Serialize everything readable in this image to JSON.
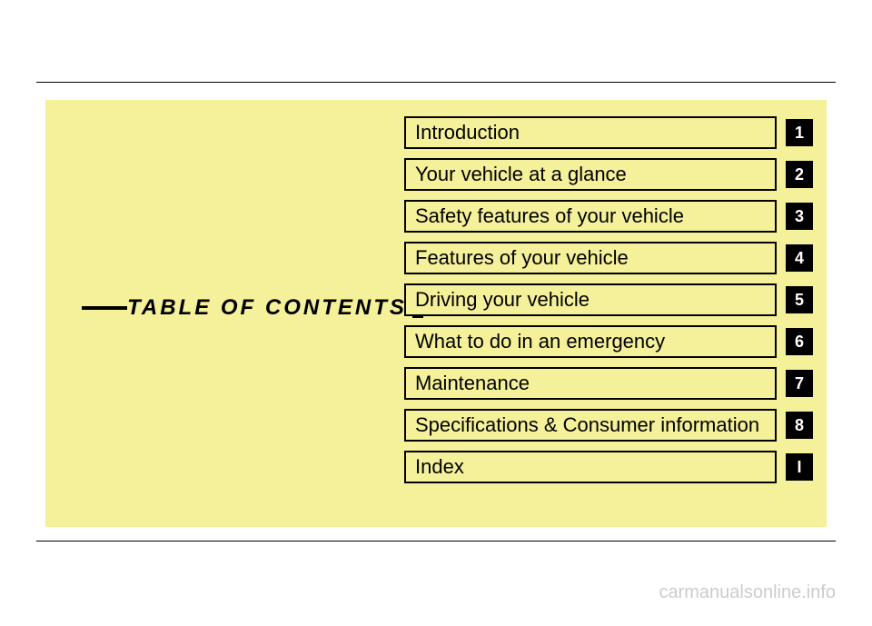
{
  "title": "TABLE OF CONTENTS",
  "items": [
    {
      "label": "Introduction",
      "tab": "1"
    },
    {
      "label": "Your vehicle at a glance",
      "tab": "2"
    },
    {
      "label": "Safety features of your vehicle",
      "tab": "3"
    },
    {
      "label": "Features of your vehicle",
      "tab": "4"
    },
    {
      "label": "Driving your vehicle",
      "tab": "5"
    },
    {
      "label": "What to do in an emergency",
      "tab": "6"
    },
    {
      "label": "Maintenance",
      "tab": "7"
    },
    {
      "label": "Specifications & Consumer information",
      "tab": "8"
    },
    {
      "label": "Index",
      "tab": "I"
    }
  ],
  "watermark": "carmanualsonline.info",
  "colors": {
    "panel_bg": "#f5f09a",
    "border": "#000000",
    "tab_bg": "#000000",
    "tab_fg": "#ffffff",
    "watermark": "#cccccc"
  },
  "fonts": {
    "title_family": "Arial Black",
    "title_size_pt": 18,
    "item_size_pt": 16,
    "tab_size_pt": 14
  }
}
